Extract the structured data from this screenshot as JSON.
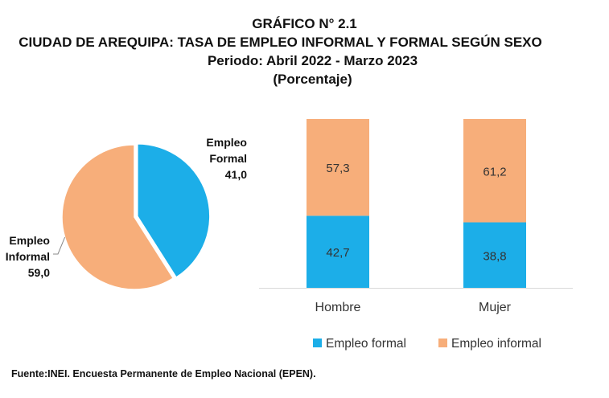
{
  "figure": {
    "number": "GRÁFICO N° 2.1",
    "title": "CIUDAD DE AREQUIPA: TASA DE EMPLEO INFORMAL Y FORMAL SEGÚN SEXO",
    "period": "Periodo: Abril 2022 - Marzo  2023",
    "unit": "(Porcentaje)",
    "source": "Fuente:INEI. Encuesta Permanente de Empleo Nacional (EPEN)."
  },
  "colors": {
    "formal": "#1CAEE8",
    "informal": "#F7AE7A"
  },
  "chart_data": [
    {
      "type": "pie",
      "slices": [
        {
          "label_lines": [
            "Empleo",
            "Formal"
          ],
          "value": 41.0,
          "value_label": "41,0",
          "color": "#1CAEE8"
        },
        {
          "label_lines": [
            "Empleo",
            "Informal"
          ],
          "value": 59.0,
          "value_label": "59,0",
          "color": "#F7AE7A"
        }
      ]
    },
    {
      "type": "bar",
      "stacked": true,
      "percent": true,
      "categories": [
        "Hombre",
        "Mujer"
      ],
      "ylim": [
        0,
        100
      ],
      "series": [
        {
          "name": "Empleo formal",
          "values": [
            42.7,
            38.8
          ],
          "value_labels": [
            "42,7",
            "38,8"
          ],
          "color": "#1CAEE8"
        },
        {
          "name": "Empleo informal",
          "values": [
            57.3,
            61.2
          ],
          "value_labels": [
            "57,3",
            "61,2"
          ],
          "color": "#F7AE7A"
        }
      ],
      "legend_position": "bottom"
    }
  ]
}
